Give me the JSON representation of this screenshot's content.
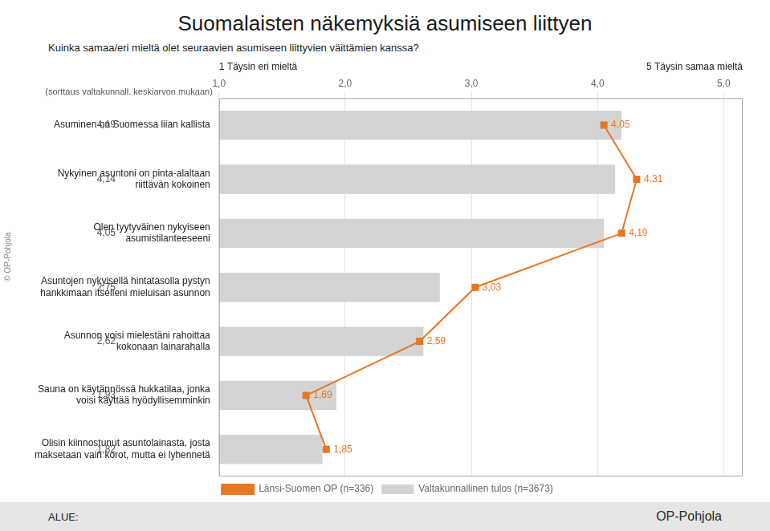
{
  "chart_data": {
    "type": "bar",
    "orientation": "horizontal",
    "title": "Suomalaisten näkemyksiä asumiseen liittyen",
    "subtitle": "Kuinka samaa/eri mieltä olet seuraavien asumiseen liittyvien väittämien kanssa?",
    "xlabel_left": "1 Täysin eri mieltä",
    "xlabel_right": "5 Täysin samaa mieltä",
    "axis_note": "(sorttaus valtakunnall. keskiarvon mukaan)",
    "annotations": [
      "ALUE:",
      "OP-Pohjola",
      "© OP-Pohjola"
    ],
    "categories": [
      "Asuminen on Suomessa liian kallista",
      "Nykyinen asuntoni on pinta-alaltaan\nriittävän kokoinen",
      "Olen tyytyväinen nykyiseen\nasumistilanteeseeni",
      "Asuntojen nykyisellä hintatasolla pystyn\nhankkimaan itselleni mieluisan asunnon",
      "Asunnon voisi mielestäni rahoittaa\nkokonaan lainarahalla",
      "Sauna on käytännössä hukkatilaa, jonka\nvoisi käyttää hyödyllisemminkin",
      "Olisin kiinnostunut asuntolainasta, josta\nmaksetaan vain korot, mutta ei lyhennetä"
    ],
    "series": [
      {
        "name": "Valtakunnallinen tulos (n=3673)",
        "type": "bar",
        "color": "#d3d3d3",
        "values": [
          4.19,
          4.14,
          4.05,
          2.75,
          2.62,
          1.93,
          1.82
        ],
        "value_labels": [
          "4,19",
          "4,14",
          "4,05",
          "2,75",
          "2,62",
          "1,93",
          "1,82"
        ]
      },
      {
        "name": "Länsi-Suomen OP (n=336)",
        "type": "line",
        "color": "#e87722",
        "marker": "square",
        "values": [
          4.05,
          4.31,
          4.19,
          3.03,
          2.59,
          1.69,
          1.85
        ],
        "value_labels": [
          "4,05",
          "4,31",
          "4,19",
          "3,03",
          "2,59",
          "1,69",
          "1,85"
        ]
      }
    ],
    "xlim": [
      1.0,
      5.15
    ],
    "xticks": [
      {
        "value": 1.0,
        "label": "1,0"
      },
      {
        "value": 2.0,
        "label": "2,0"
      },
      {
        "value": 3.0,
        "label": "3,0"
      },
      {
        "value": 4.0,
        "label": "4,0"
      },
      {
        "value": 5.0,
        "label": "5,0"
      }
    ],
    "grid": true,
    "data_labels": true,
    "legend": "bottom"
  }
}
